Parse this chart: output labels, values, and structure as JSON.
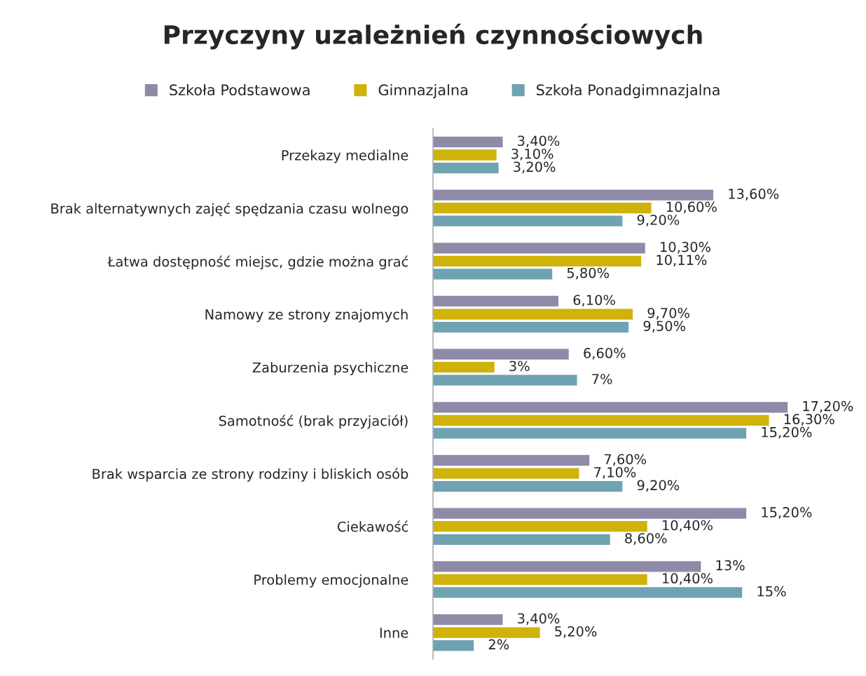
{
  "chart_data": {
    "type": "bar",
    "orientation": "horizontal",
    "title": "Przyczyny uzależnień czynnościowych",
    "legend": "top",
    "categories": [
      "Przekazy medialne",
      "Brak alternatywnych zajęć spędzania czasu wolnego",
      "Łatwa dostępność miejsc, gdzie można grać",
      "Namowy ze strony znajomych",
      "Zaburzenia psychiczne",
      "Samotność (brak przyjaciół)",
      "Brak wsparcia ze strony rodziny i bliskich osób",
      "Ciekawość",
      "Problemy emocjonalne",
      "Inne"
    ],
    "series": [
      {
        "name": "Szkoła Podstawowa",
        "color": "#8f8aa8",
        "values": [
          3.4,
          13.6,
          10.3,
          6.1,
          6.6,
          17.2,
          7.6,
          15.2,
          13,
          3.4
        ],
        "value_labels": [
          "3,40%",
          "13,60%",
          "10,30%",
          "6,10%",
          "6,60%",
          "17,20%",
          "7,60%",
          "15,20%",
          "13%",
          "3,40%"
        ]
      },
      {
        "name": "Gimnazjalna",
        "color": "#cfb20a",
        "values": [
          3.1,
          10.6,
          10.11,
          9.7,
          3,
          16.3,
          7.1,
          10.4,
          10.4,
          5.2
        ],
        "value_labels": [
          "3,10%",
          "10,60%",
          "10,11%",
          "9,70%",
          "3%",
          "16,30%",
          "7,10%",
          "10,40%",
          "10,40%",
          "5,20%"
        ]
      },
      {
        "name": "Szkoła Ponadgimnazjalna",
        "color": "#6fa3b1",
        "values": [
          3.2,
          9.2,
          5.8,
          9.5,
          7,
          15.2,
          9.2,
          8.6,
          15,
          2
        ],
        "value_labels": [
          "3,20%",
          "9,20%",
          "5,80%",
          "9,50%",
          "7%",
          "15,20%",
          "9,20%",
          "8,60%",
          "15%",
          "2%"
        ]
      }
    ]
  }
}
